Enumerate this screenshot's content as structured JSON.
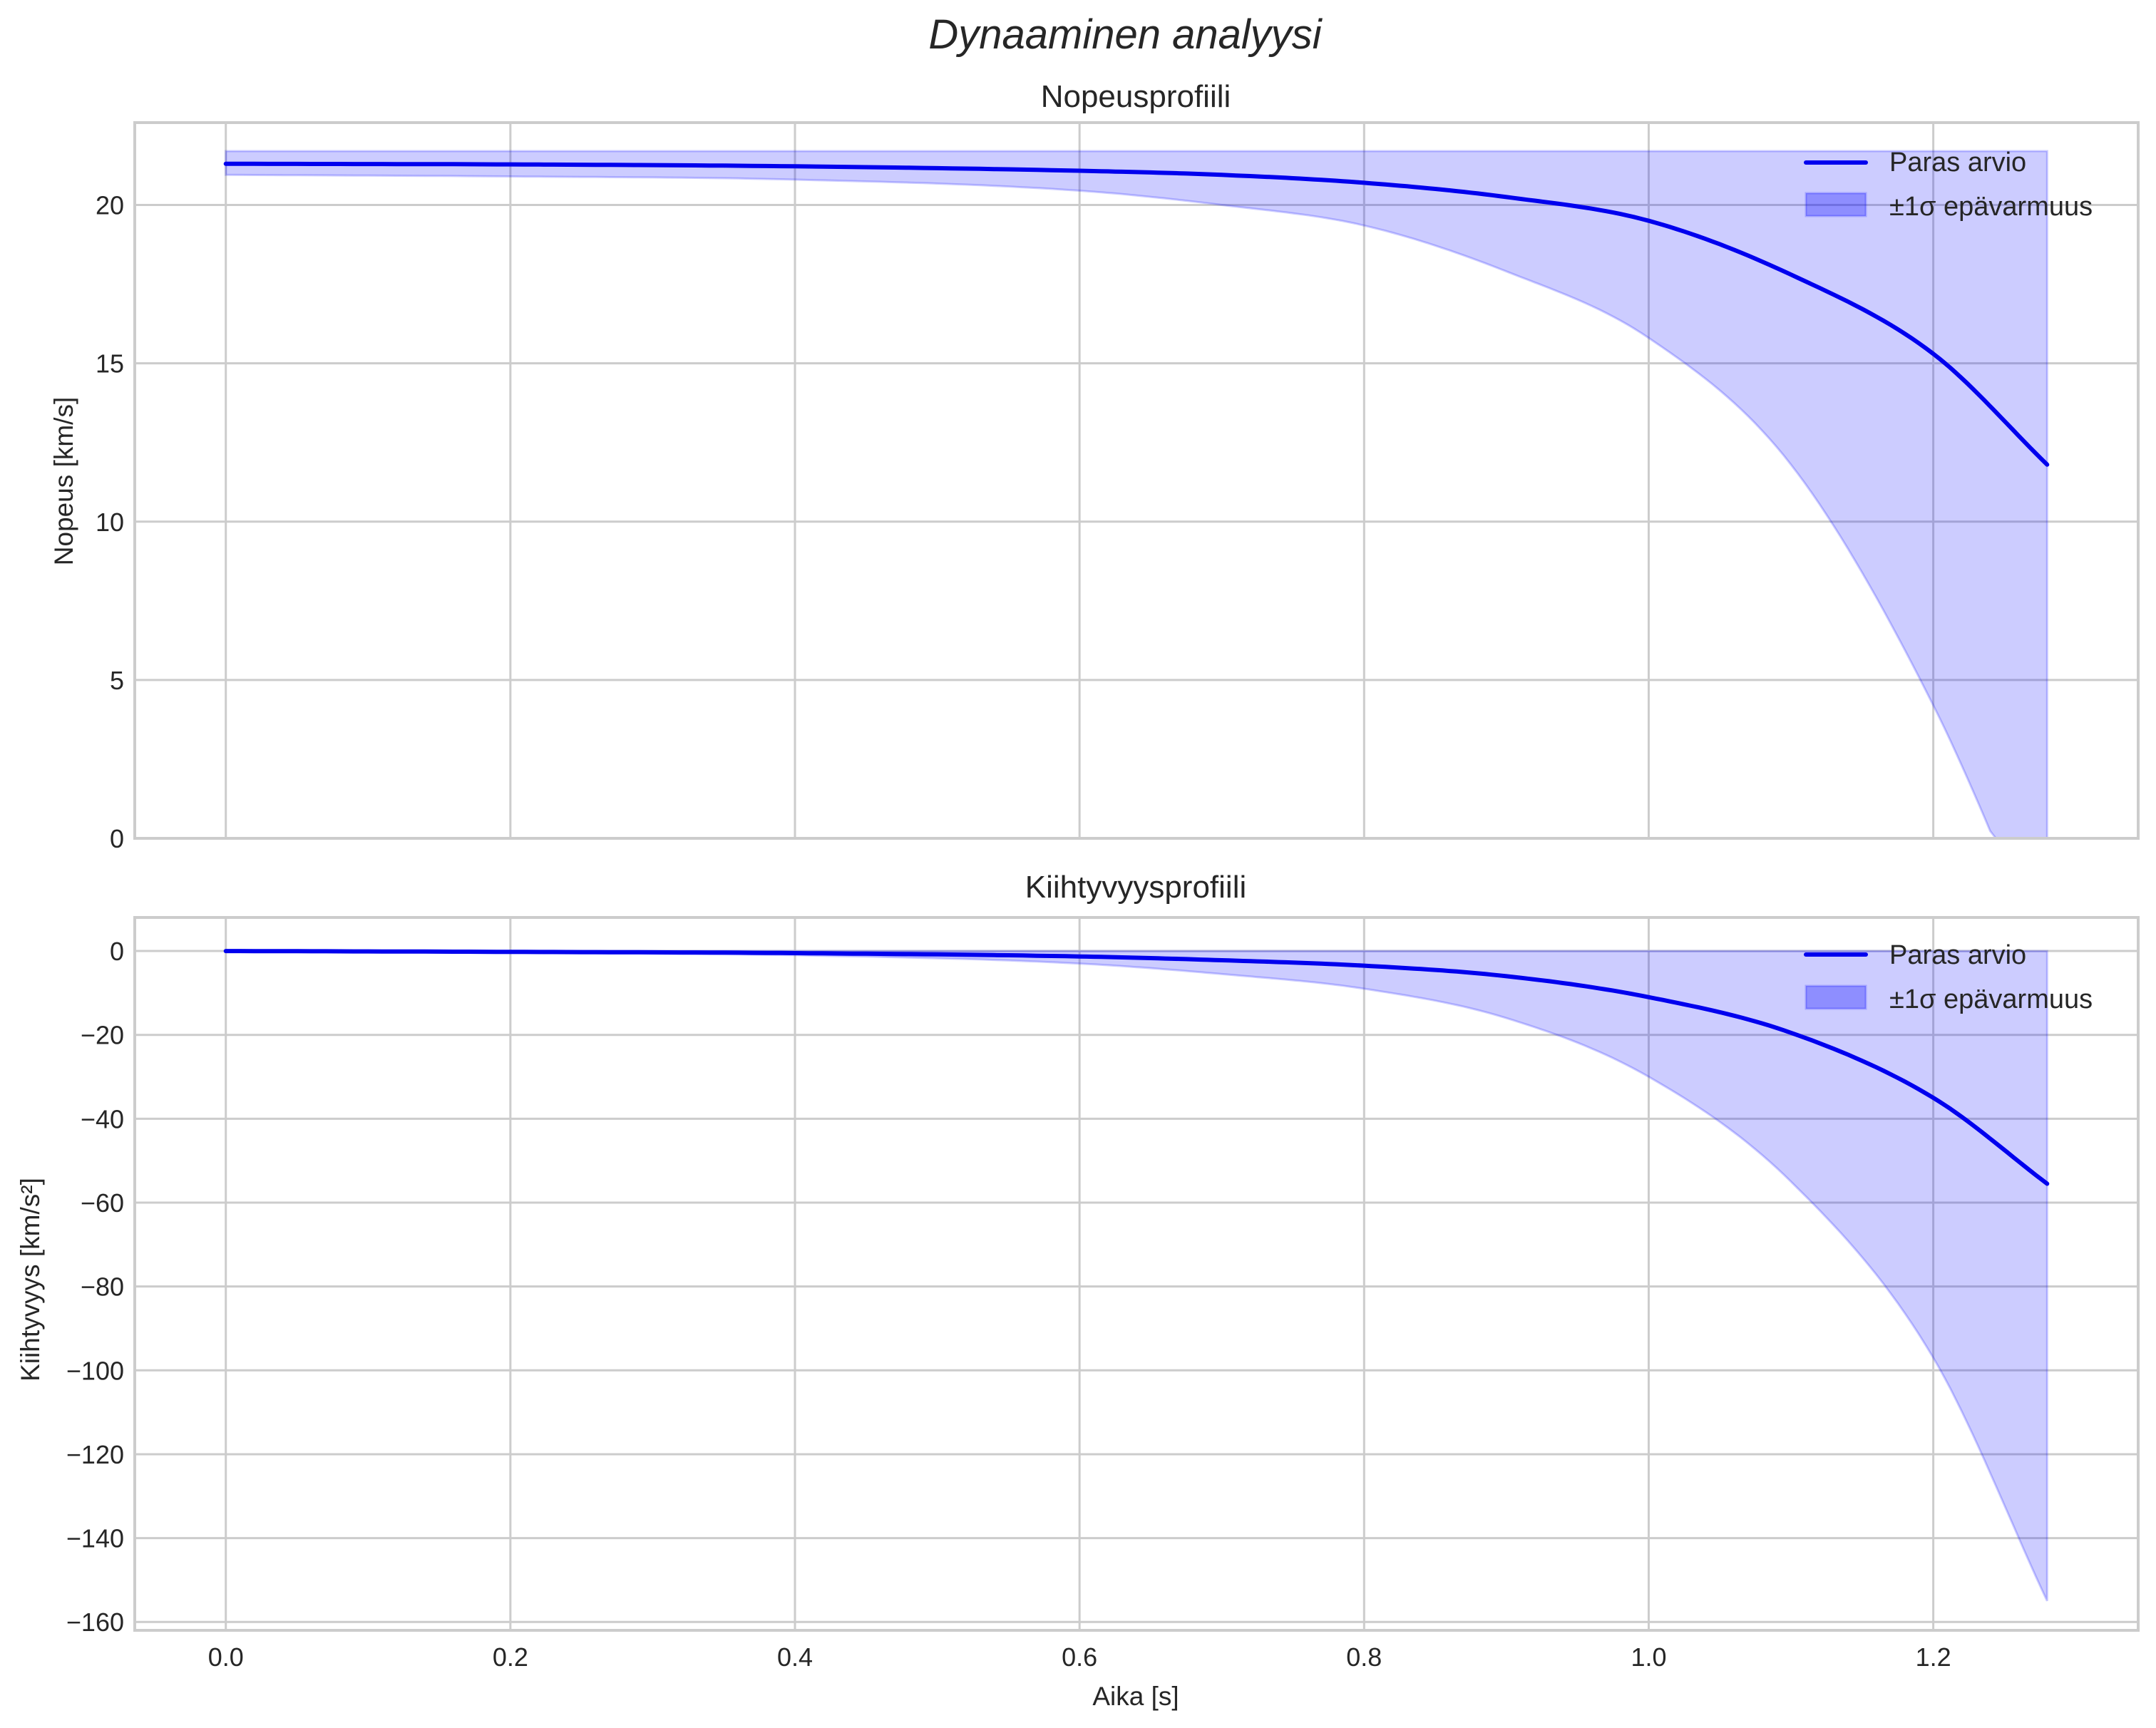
{
  "figure": {
    "suptitle": "Dynaaminen analyysi",
    "xlabel": "Aika [s]"
  },
  "colors": {
    "line": "#0000ee",
    "band": "#0000ff",
    "grid": "#cccccc",
    "text": "#262626"
  },
  "legend": {
    "line_label": "Paras arvio",
    "band_label": "±1σ epävarmuus"
  },
  "chart_data": [
    {
      "type": "line",
      "title": "Nopeusprofiili",
      "xlabel": "",
      "ylabel": "Nopeus [km/s]",
      "xlim": [
        -0.064,
        1.344
      ],
      "ylim": [
        0,
        22.6
      ],
      "xticks": [
        "0.0",
        "0.2",
        "0.4",
        "0.6",
        "0.8",
        "1.0",
        "1.2"
      ],
      "yticks": [
        "0",
        "5",
        "10",
        "15",
        "20"
      ],
      "grid": true,
      "legend_position": "upper right",
      "x": [
        0.0,
        0.2,
        0.4,
        0.6,
        0.7,
        0.8,
        0.9,
        1.0,
        1.1,
        1.2,
        1.28
      ],
      "series": [
        {
          "name": "Paras arvio",
          "values": [
            21.3,
            21.28,
            21.22,
            21.08,
            20.95,
            20.7,
            20.25,
            19.5,
            17.8,
            15.3,
            11.8
          ]
        },
        {
          "name": "±1σ epävarmuus (yläraja)",
          "values": [
            21.7,
            21.7,
            21.7,
            21.7,
            21.7,
            21.7,
            21.7,
            21.7,
            21.7,
            21.7,
            21.7
          ]
        },
        {
          "name": "±1σ epävarmuus (alaraja)",
          "values": [
            20.95,
            20.9,
            20.8,
            20.45,
            20.0,
            19.35,
            17.9,
            15.8,
            11.8,
            4.2,
            -4.0
          ]
        }
      ]
    },
    {
      "type": "line",
      "title": "Kiihtyvyysprofiili",
      "xlabel": "Aika [s]",
      "ylabel": "Kiihtyvyys [km/s²]",
      "xlim": [
        -0.064,
        1.344
      ],
      "ylim": [
        -162,
        8
      ],
      "xticks": [
        "0.0",
        "0.2",
        "0.4",
        "0.6",
        "0.8",
        "1.0",
        "1.2"
      ],
      "yticks": [
        "0",
        "−20",
        "−40",
        "−60",
        "−80",
        "−100",
        "−120",
        "−140",
        "−160"
      ],
      "grid": true,
      "legend_position": "upper right",
      "x": [
        0.0,
        0.2,
        0.4,
        0.6,
        0.7,
        0.8,
        0.9,
        1.0,
        1.1,
        1.2,
        1.28
      ],
      "series": [
        {
          "name": "Paras arvio",
          "values": [
            0.0,
            -0.2,
            -0.5,
            -1.3,
            -2.2,
            -3.5,
            -6.0,
            -11.0,
            -19.5,
            -35.0,
            -55.5
          ]
        },
        {
          "name": "±1σ epävarmuus (yläraja)",
          "values": [
            0,
            0,
            0,
            0,
            0,
            0,
            0,
            0,
            0,
            0,
            0
          ]
        },
        {
          "name": "±1σ epävarmuus (alaraja)",
          "values": [
            0.0,
            -0.5,
            -1.0,
            -3.0,
            -5.5,
            -9.0,
            -16.0,
            -30.0,
            -55.0,
            -97.0,
            -155.0
          ]
        }
      ]
    }
  ]
}
